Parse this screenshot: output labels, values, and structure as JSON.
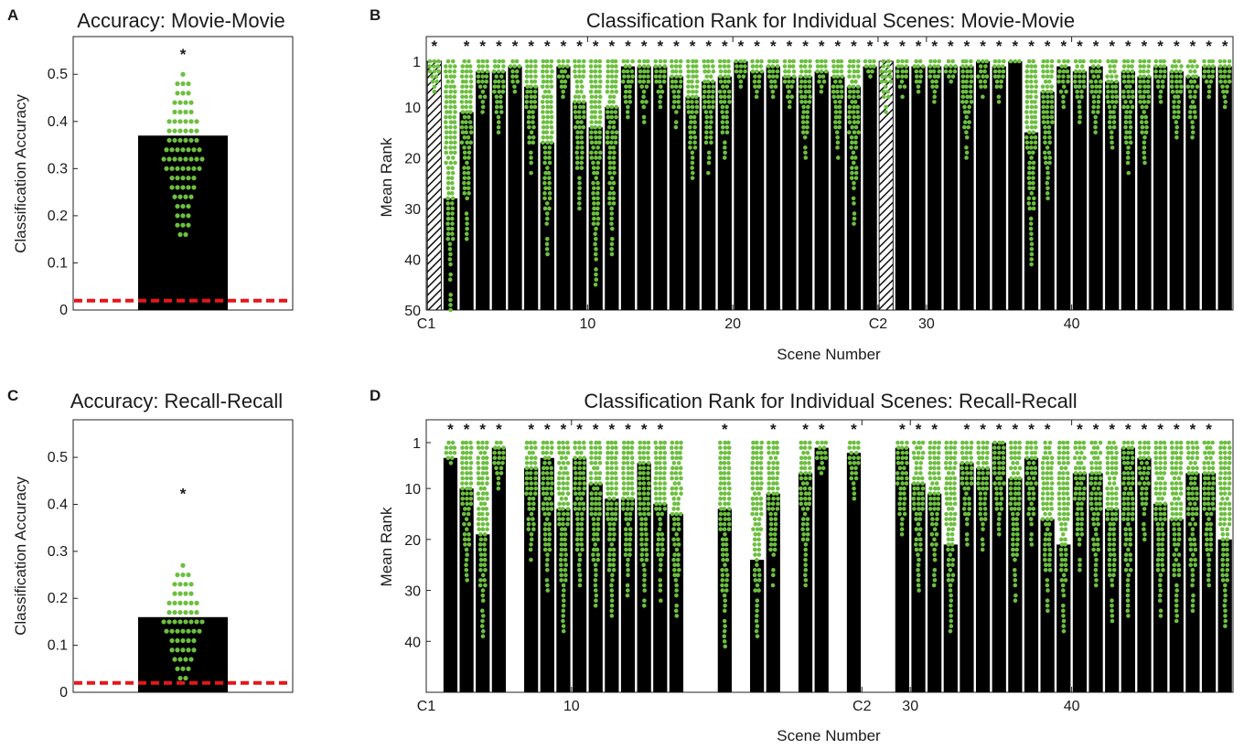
{
  "colors": {
    "bar": "#000000",
    "dot": "#6cbf3f",
    "chance": "#e8141b",
    "axis": "#222222"
  },
  "chart_data": [
    {
      "panel": "A",
      "type": "bar",
      "title": "Accuracy: Movie-Movie",
      "ylabel": "Classification Accuracy",
      "ylim": [
        0,
        0.58
      ],
      "yticks": [
        0,
        0.1,
        0.2,
        0.3,
        0.4,
        0.5
      ],
      "ytick_labels": [
        "0",
        "0.1",
        "0.2",
        "0.3",
        "0.4",
        "0.5"
      ],
      "value": 0.37,
      "chance": 0.02,
      "significance": "*",
      "significance_y": 0.545,
      "dots": {
        "min": 0.16,
        "max": 0.5,
        "step": 0.02
      }
    },
    {
      "panel": "B",
      "type": "bar",
      "title": "Classification Rank for Individual Scenes: Movie-Movie",
      "xlabel": "Scene Number",
      "ylabel": "Mean Rank",
      "y_reversed": true,
      "ylim": [
        1,
        50
      ],
      "yticks": [
        1,
        10,
        20,
        30,
        40,
        50
      ],
      "ytick_labels": [
        "1",
        "10",
        "20",
        "30",
        "40",
        "50"
      ],
      "xtick_labels": [
        {
          "label": "C1",
          "after_bar": 0
        },
        {
          "label": "10",
          "after_bar": 10
        },
        {
          "label": "20",
          "after_bar": 19
        },
        {
          "label": "C2",
          "after_bar": 28
        },
        {
          "label": "30",
          "after_bar": 31
        },
        {
          "label": "40",
          "after_bar": 40
        }
      ],
      "bars": [
        {
          "value": 1,
          "hatched": true,
          "spread": 7,
          "sig": true
        },
        {
          "value": 28,
          "spread": 50,
          "sig": false
        },
        {
          "value": 11,
          "spread": 37,
          "sig": true
        },
        {
          "value": 3,
          "spread": 11,
          "sig": true
        },
        {
          "value": 3,
          "spread": 15,
          "sig": true
        },
        {
          "value": 2,
          "spread": 7,
          "sig": true
        },
        {
          "value": 6,
          "spread": 23,
          "sig": true
        },
        {
          "value": 17,
          "spread": 40,
          "sig": true
        },
        {
          "value": 2,
          "spread": 8,
          "sig": true
        },
        {
          "value": 9,
          "spread": 30,
          "sig": true
        },
        {
          "value": 14,
          "spread": 45,
          "sig": true
        },
        {
          "value": 10,
          "spread": 39,
          "sig": true
        },
        {
          "value": 2,
          "spread": 12,
          "sig": true
        },
        {
          "value": 2,
          "spread": 13,
          "sig": true
        },
        {
          "value": 2,
          "spread": 10,
          "sig": true
        },
        {
          "value": 4,
          "spread": 14,
          "sig": true
        },
        {
          "value": 8,
          "spread": 24,
          "sig": true
        },
        {
          "value": 5,
          "spread": 23,
          "sig": true
        },
        {
          "value": 4,
          "spread": 20,
          "sig": true
        },
        {
          "value": 1,
          "spread": 6,
          "sig": true
        },
        {
          "value": 3,
          "spread": 8,
          "sig": true
        },
        {
          "value": 2,
          "spread": 9,
          "sig": true
        },
        {
          "value": 4,
          "spread": 11,
          "sig": true
        },
        {
          "value": 4,
          "spread": 20,
          "sig": true
        },
        {
          "value": 3,
          "spread": 8,
          "sig": true
        },
        {
          "value": 4,
          "spread": 20,
          "sig": true
        },
        {
          "value": 6,
          "spread": 33,
          "sig": true
        },
        {
          "value": 2,
          "spread": 5,
          "sig": true
        },
        {
          "value": 1,
          "hatched": true,
          "spread": 11,
          "sig": true
        },
        {
          "value": 2,
          "spread": 8,
          "sig": true
        },
        {
          "value": 2,
          "spread": 7,
          "sig": true
        },
        {
          "value": 2,
          "spread": 9,
          "sig": true
        },
        {
          "value": 2,
          "spread": 6,
          "sig": true
        },
        {
          "value": 2,
          "spread": 20,
          "sig": true
        },
        {
          "value": 1,
          "spread": 8,
          "sig": true
        },
        {
          "value": 2,
          "spread": 9,
          "sig": true
        },
        {
          "value": 1,
          "spread": 1,
          "sig": true
        },
        {
          "value": 15,
          "spread": 41,
          "sig": true
        },
        {
          "value": 7,
          "spread": 28,
          "sig": true
        },
        {
          "value": 2,
          "spread": 10,
          "sig": true
        },
        {
          "value": 3,
          "spread": 13,
          "sig": true
        },
        {
          "value": 2,
          "spread": 15,
          "sig": true
        },
        {
          "value": 5,
          "spread": 19,
          "sig": true
        },
        {
          "value": 3,
          "spread": 23,
          "sig": true
        },
        {
          "value": 4,
          "spread": 21,
          "sig": true
        },
        {
          "value": 2,
          "spread": 9,
          "sig": true
        },
        {
          "value": 3,
          "spread": 16,
          "sig": true
        },
        {
          "value": 4,
          "spread": 16,
          "sig": true
        },
        {
          "value": 2,
          "spread": 8,
          "sig": true
        },
        {
          "value": 2,
          "spread": 10,
          "sig": true
        }
      ]
    },
    {
      "panel": "C",
      "type": "bar",
      "title": "Accuracy: Recall-Recall",
      "ylabel": "Classification Accuracy",
      "ylim": [
        0,
        0.58
      ],
      "yticks": [
        0,
        0.1,
        0.2,
        0.3,
        0.4,
        0.5
      ],
      "ytick_labels": [
        "0",
        "0.1",
        "0.2",
        "0.3",
        "0.4",
        "0.5"
      ],
      "value": 0.16,
      "chance": 0.02,
      "significance": "*",
      "significance_y": 0.425,
      "dots": {
        "min": 0.03,
        "max": 0.27,
        "step": 0.02
      }
    },
    {
      "panel": "D",
      "type": "bar",
      "title": "Classification Rank for Individual Scenes: Recall-Recall",
      "xlabel": "Scene Number",
      "ylabel": "Mean Rank",
      "y_reversed": true,
      "ylim": [
        1,
        50
      ],
      "yticks": [
        1,
        10,
        20,
        30,
        40
      ],
      "ytick_labels": [
        "1",
        "10",
        "20",
        "30",
        "40"
      ],
      "xtick_labels": [
        {
          "label": "C1",
          "after_bar": 0
        },
        {
          "label": "10",
          "after_bar": 9
        },
        {
          "label": "C2",
          "after_bar": 27
        },
        {
          "label": "30",
          "after_bar": 30
        },
        {
          "label": "40",
          "after_bar": 40
        }
      ],
      "bars": [
        {
          "value": null,
          "spread": null,
          "sig": false
        },
        {
          "value": 4,
          "spread": 6,
          "sig": true
        },
        {
          "value": 10,
          "spread": 28,
          "sig": true
        },
        {
          "value": 19,
          "spread": 39,
          "sig": true
        },
        {
          "value": 2,
          "spread": 10,
          "sig": true
        },
        {
          "value": null,
          "spread": null,
          "sig": false
        },
        {
          "value": 6,
          "spread": 24,
          "sig": true
        },
        {
          "value": 4,
          "spread": 30,
          "sig": true
        },
        {
          "value": 14,
          "spread": 38,
          "sig": true
        },
        {
          "value": 4,
          "spread": 30,
          "sig": true
        },
        {
          "value": 9,
          "spread": 33,
          "sig": true
        },
        {
          "value": 12,
          "spread": 35,
          "sig": true
        },
        {
          "value": 12,
          "spread": 31,
          "sig": true
        },
        {
          "value": 5,
          "spread": 33,
          "sig": true
        },
        {
          "value": 13,
          "spread": 32,
          "sig": true
        },
        {
          "value": 15,
          "spread": 36,
          "sig": false
        },
        {
          "value": null,
          "spread": null,
          "sig": false
        },
        {
          "value": null,
          "spread": null,
          "sig": false
        },
        {
          "value": 14,
          "spread": 41,
          "sig": true
        },
        {
          "value": null,
          "spread": null,
          "sig": false
        },
        {
          "value": 24,
          "spread": 41,
          "sig": false
        },
        {
          "value": 11,
          "spread": 31,
          "sig": true
        },
        {
          "value": null,
          "spread": null,
          "sig": false
        },
        {
          "value": 7,
          "spread": 29,
          "sig": true
        },
        {
          "value": 2,
          "spread": 8,
          "sig": true
        },
        {
          "value": null,
          "spread": null,
          "sig": false
        },
        {
          "value": 3,
          "spread": 12,
          "sig": true
        },
        {
          "value": null,
          "spread": null,
          "sig": false
        },
        {
          "value": null,
          "spread": null,
          "sig": false
        },
        {
          "value": 2,
          "spread": 20,
          "sig": true
        },
        {
          "value": 9,
          "spread": 30,
          "sig": true
        },
        {
          "value": 11,
          "spread": 30,
          "sig": true
        },
        {
          "value": 21,
          "spread": 38,
          "sig": false
        },
        {
          "value": 5,
          "spread": 21,
          "sig": true
        },
        {
          "value": 6,
          "spread": 22,
          "sig": true
        },
        {
          "value": 1,
          "spread": 19,
          "sig": true
        },
        {
          "value": 8,
          "spread": 32,
          "sig": true
        },
        {
          "value": 4,
          "spread": 21,
          "sig": true
        },
        {
          "value": 16,
          "spread": 35,
          "sig": true
        },
        {
          "value": 21,
          "spread": 38,
          "sig": false
        },
        {
          "value": 7,
          "spread": 26,
          "sig": true
        },
        {
          "value": 7,
          "spread": 30,
          "sig": true
        },
        {
          "value": 14,
          "spread": 36,
          "sig": true
        },
        {
          "value": 2,
          "spread": 35,
          "sig": true
        },
        {
          "value": 4,
          "spread": 20,
          "sig": true
        },
        {
          "value": 13,
          "spread": 35,
          "sig": true
        },
        {
          "value": 16,
          "spread": 36,
          "sig": true
        },
        {
          "value": 7,
          "spread": 34,
          "sig": true
        },
        {
          "value": 7,
          "spread": 30,
          "sig": true
        },
        {
          "value": 20,
          "spread": 38,
          "sig": false
        }
      ]
    }
  ]
}
